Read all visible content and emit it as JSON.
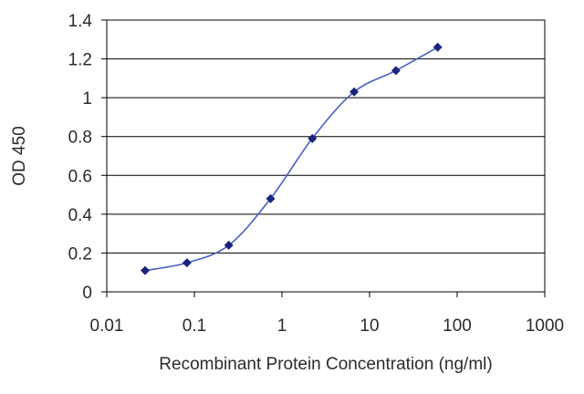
{
  "chart_data": {
    "type": "line",
    "title": "",
    "xlabel": "Recombinant Protein Concentration (ng/ml)",
    "ylabel": "OD 450",
    "x_scale": "log",
    "xlim": [
      0.01,
      1000
    ],
    "ylim": [
      0,
      1.4
    ],
    "grid": true,
    "legend": "none",
    "x_ticks": [
      "0.01",
      "0.1",
      "1",
      "10",
      "100",
      "1000"
    ],
    "y_ticks": [
      "0",
      "0.2",
      "0.4",
      "0.6",
      "0.8",
      "1",
      "1.2",
      "1.4"
    ],
    "series": [
      {
        "x": [
          0.0274,
          0.0823,
          0.247,
          0.741,
          2.22,
          6.67,
          20.0,
          60.0
        ],
        "values": [
          0.11,
          0.15,
          0.24,
          0.48,
          0.79,
          1.03,
          1.14,
          1.26
        ],
        "color": "#1f2a9a"
      }
    ],
    "colors": {
      "line": "#4a5fc2",
      "marker": "#1a2380",
      "grid": "#000000"
    }
  }
}
